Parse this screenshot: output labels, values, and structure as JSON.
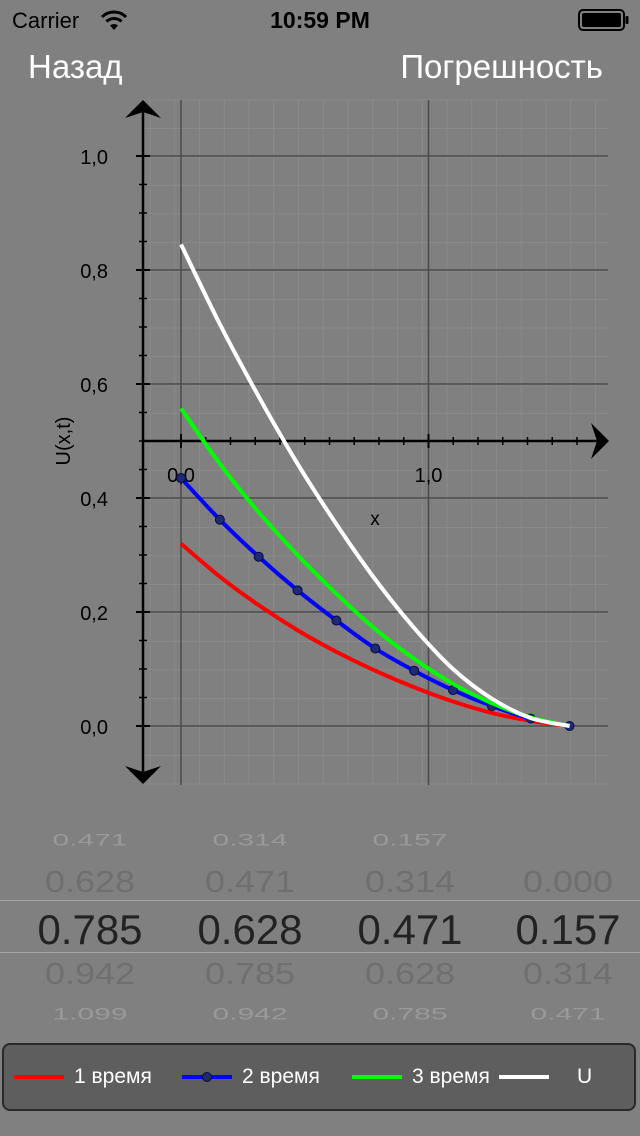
{
  "status_bar": {
    "carrier": "Carrier",
    "time": "10:59 PM"
  },
  "nav": {
    "back_label": "Назад",
    "error_label": "Погрешность"
  },
  "chart_data": {
    "type": "line",
    "xlabel": "x",
    "ylabel": "U(x,t)",
    "x_ticks": [
      "0,0",
      "1,0"
    ],
    "y_ticks": [
      "0,0",
      "0,2",
      "0,4",
      "0,6",
      "0,8",
      "1,0"
    ],
    "x": [
      0,
      0.157,
      0.314,
      0.471,
      0.628,
      0.785,
      0.942,
      1.099,
      1.256,
      1.413,
      1.57
    ],
    "series": [
      {
        "name": "1 время",
        "color": "#ff0000",
        "markers": false,
        "values": [
          0.32,
          0.262,
          0.212,
          0.168,
          0.13,
          0.097,
          0.068,
          0.043,
          0.023,
          0.009,
          0
        ]
      },
      {
        "name": "2 время",
        "color": "#0000ff",
        "markers": true,
        "values": [
          0.435,
          0.362,
          0.297,
          0.238,
          0.185,
          0.136,
          0.097,
          0.063,
          0.035,
          0.013,
          0
        ]
      },
      {
        "name": "3 время",
        "color": "#00ff00",
        "markers": false,
        "values": [
          0.557,
          0.46,
          0.375,
          0.3,
          0.232,
          0.17,
          0.118,
          0.074,
          0.04,
          0.015,
          0
        ]
      },
      {
        "name": "U",
        "color": "#ffffff",
        "markers": false,
        "values": [
          0.845,
          0.705,
          0.578,
          0.46,
          0.354,
          0.257,
          0.172,
          0.1,
          0.048,
          0.014,
          0
        ]
      }
    ]
  },
  "picker": {
    "rows": [
      [
        "0.471",
        "0.314",
        "0.157",
        ""
      ],
      [
        "0.628",
        "0.471",
        "0.314",
        "0.000"
      ],
      [
        "0.785",
        "0.628",
        "0.471",
        "0.157"
      ],
      [
        "0.942",
        "0.785",
        "0.628",
        "0.314"
      ],
      [
        "1.099",
        "0.942",
        "0.785",
        "0.471"
      ]
    ]
  }
}
